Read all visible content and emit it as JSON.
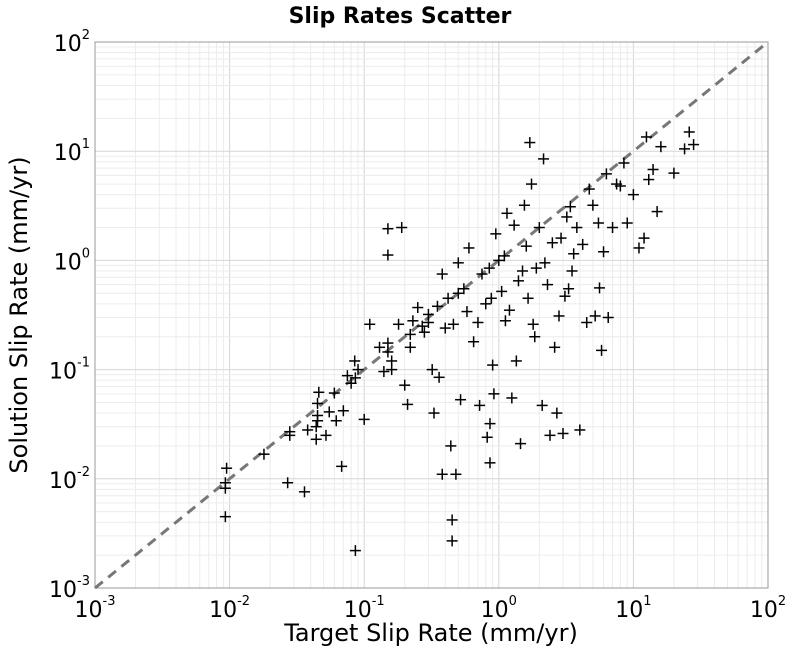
{
  "chart_data": {
    "type": "scatter",
    "title": "Slip Rates Scatter",
    "xlabel": "Target Slip Rate (mm/yr)",
    "ylabel": "Solution Slip Rate (mm/yr)",
    "xscale": "log",
    "yscale": "log",
    "xlim": [
      0.001,
      100
    ],
    "ylim": [
      0.001,
      100
    ],
    "grid": true,
    "marker": "+",
    "marker_color": "#000000",
    "reference_line": {
      "style": "dashed",
      "color": "#777777",
      "from": [
        0.001,
        0.001
      ],
      "to": [
        100,
        100
      ]
    },
    "x_ticks": [
      {
        "base": "10",
        "exp": "-3"
      },
      {
        "base": "10",
        "exp": "-2"
      },
      {
        "base": "10",
        "exp": "-1"
      },
      {
        "base": "10",
        "exp": "0"
      },
      {
        "base": "10",
        "exp": "1"
      },
      {
        "base": "10",
        "exp": "2"
      }
    ],
    "y_ticks": [
      {
        "base": "10",
        "exp": "-3"
      },
      {
        "base": "10",
        "exp": "-2"
      },
      {
        "base": "10",
        "exp": "-1"
      },
      {
        "base": "10",
        "exp": "0"
      },
      {
        "base": "10",
        "exp": "1"
      },
      {
        "base": "10",
        "exp": "2"
      }
    ],
    "points": [
      [
        0.0093,
        0.0045
      ],
      [
        0.0093,
        0.0082
      ],
      [
        0.0093,
        0.0092
      ],
      [
        0.0095,
        0.0125
      ],
      [
        0.018,
        0.0168
      ],
      [
        0.027,
        0.0092
      ],
      [
        0.028,
        0.025
      ],
      [
        0.028,
        0.027
      ],
      [
        0.036,
        0.0076
      ],
      [
        0.038,
        0.028
      ],
      [
        0.044,
        0.023
      ],
      [
        0.044,
        0.03
      ],
      [
        0.045,
        0.034
      ],
      [
        0.045,
        0.038
      ],
      [
        0.045,
        0.049
      ],
      [
        0.046,
        0.062
      ],
      [
        0.052,
        0.025
      ],
      [
        0.055,
        0.041
      ],
      [
        0.06,
        0.061
      ],
      [
        0.062,
        0.034
      ],
      [
        0.068,
        0.013
      ],
      [
        0.07,
        0.042
      ],
      [
        0.075,
        0.088
      ],
      [
        0.08,
        0.075
      ],
      [
        0.085,
        0.12
      ],
      [
        0.086,
        0.0022
      ],
      [
        0.086,
        0.084
      ],
      [
        0.09,
        0.1
      ],
      [
        0.1,
        0.035
      ],
      [
        0.11,
        0.26
      ],
      [
        0.13,
        0.16
      ],
      [
        0.14,
        0.096
      ],
      [
        0.15,
        1.95
      ],
      [
        0.15,
        1.12
      ],
      [
        0.15,
        0.145
      ],
      [
        0.15,
        0.175
      ],
      [
        0.16,
        0.1
      ],
      [
        0.16,
        0.12
      ],
      [
        0.18,
        0.26
      ],
      [
        0.19,
        2.0
      ],
      [
        0.2,
        0.072
      ],
      [
        0.21,
        0.048
      ],
      [
        0.22,
        0.16
      ],
      [
        0.22,
        0.21
      ],
      [
        0.23,
        0.28
      ],
      [
        0.25,
        0.37
      ],
      [
        0.27,
        0.25
      ],
      [
        0.28,
        0.22
      ],
      [
        0.3,
        0.27
      ],
      [
        0.3,
        0.32
      ],
      [
        0.32,
        0.1
      ],
      [
        0.33,
        0.04
      ],
      [
        0.35,
        0.38
      ],
      [
        0.36,
        0.085
      ],
      [
        0.38,
        0.011
      ],
      [
        0.38,
        0.75
      ],
      [
        0.4,
        0.24
      ],
      [
        0.42,
        0.45
      ],
      [
        0.44,
        0.02
      ],
      [
        0.45,
        0.0042
      ],
      [
        0.45,
        0.0027
      ],
      [
        0.46,
        0.26
      ],
      [
        0.48,
        0.011
      ],
      [
        0.5,
        0.5
      ],
      [
        0.5,
        0.95
      ],
      [
        0.52,
        0.053
      ],
      [
        0.55,
        0.55
      ],
      [
        0.58,
        0.34
      ],
      [
        0.6,
        1.3
      ],
      [
        0.65,
        0.18
      ],
      [
        0.7,
        0.27
      ],
      [
        0.72,
        0.047
      ],
      [
        0.75,
        0.75
      ],
      [
        0.8,
        0.4
      ],
      [
        0.82,
        0.024
      ],
      [
        0.85,
        0.85
      ],
      [
        0.86,
        0.032
      ],
      [
        0.86,
        0.014
      ],
      [
        0.88,
        0.45
      ],
      [
        0.9,
        0.11
      ],
      [
        0.92,
        0.06
      ],
      [
        0.95,
        1.75
      ],
      [
        1.0,
        1.0
      ],
      [
        1.05,
        0.52
      ],
      [
        1.1,
        1.1
      ],
      [
        1.12,
        0.28
      ],
      [
        1.15,
        2.7
      ],
      [
        1.2,
        0.35
      ],
      [
        1.25,
        0.055
      ],
      [
        1.3,
        2.1
      ],
      [
        1.35,
        0.12
      ],
      [
        1.4,
        0.65
      ],
      [
        1.45,
        0.021
      ],
      [
        1.5,
        0.8
      ],
      [
        1.55,
        3.2
      ],
      [
        1.6,
        1.35
      ],
      [
        1.65,
        0.45
      ],
      [
        1.7,
        12.0
      ],
      [
        1.75,
        5.0
      ],
      [
        1.8,
        0.26
      ],
      [
        1.85,
        0.2
      ],
      [
        1.9,
        0.85
      ],
      [
        2.0,
        2.0
      ],
      [
        2.1,
        0.047
      ],
      [
        2.15,
        8.5
      ],
      [
        2.2,
        0.95
      ],
      [
        2.3,
        0.6
      ],
      [
        2.4,
        0.025
      ],
      [
        2.5,
        1.45
      ],
      [
        2.6,
        0.16
      ],
      [
        2.7,
        0.04
      ],
      [
        2.8,
        0.31
      ],
      [
        2.9,
        1.6
      ],
      [
        3.0,
        0.026
      ],
      [
        3.1,
        0.47
      ],
      [
        3.2,
        2.5
      ],
      [
        3.3,
        0.55
      ],
      [
        3.4,
        3.1
      ],
      [
        3.5,
        0.8
      ],
      [
        3.6,
        1.15
      ],
      [
        3.8,
        2.0
      ],
      [
        4.0,
        0.028
      ],
      [
        4.2,
        1.4
      ],
      [
        4.5,
        0.27
      ],
      [
        4.7,
        4.5
      ],
      [
        5.0,
        3.2
      ],
      [
        5.2,
        0.31
      ],
      [
        5.5,
        2.2
      ],
      [
        5.6,
        0.56
      ],
      [
        5.8,
        0.15
      ],
      [
        6.0,
        1.2
      ],
      [
        6.3,
        6.2
      ],
      [
        6.5,
        0.3
      ],
      [
        7.0,
        2.0
      ],
      [
        7.5,
        5.0
      ],
      [
        8.0,
        4.8
      ],
      [
        8.5,
        7.8
      ],
      [
        9.0,
        2.2
      ],
      [
        10.0,
        4.0
      ],
      [
        11.0,
        1.3
      ],
      [
        12.0,
        1.6
      ],
      [
        12.5,
        13.5
      ],
      [
        13.0,
        5.5
      ],
      [
        14.0,
        6.8
      ],
      [
        15.0,
        2.8
      ],
      [
        16.0,
        11.0
      ],
      [
        20.0,
        6.3
      ],
      [
        24.0,
        10.5
      ],
      [
        26.0,
        15.0
      ],
      [
        28.0,
        11.5
      ]
    ]
  }
}
